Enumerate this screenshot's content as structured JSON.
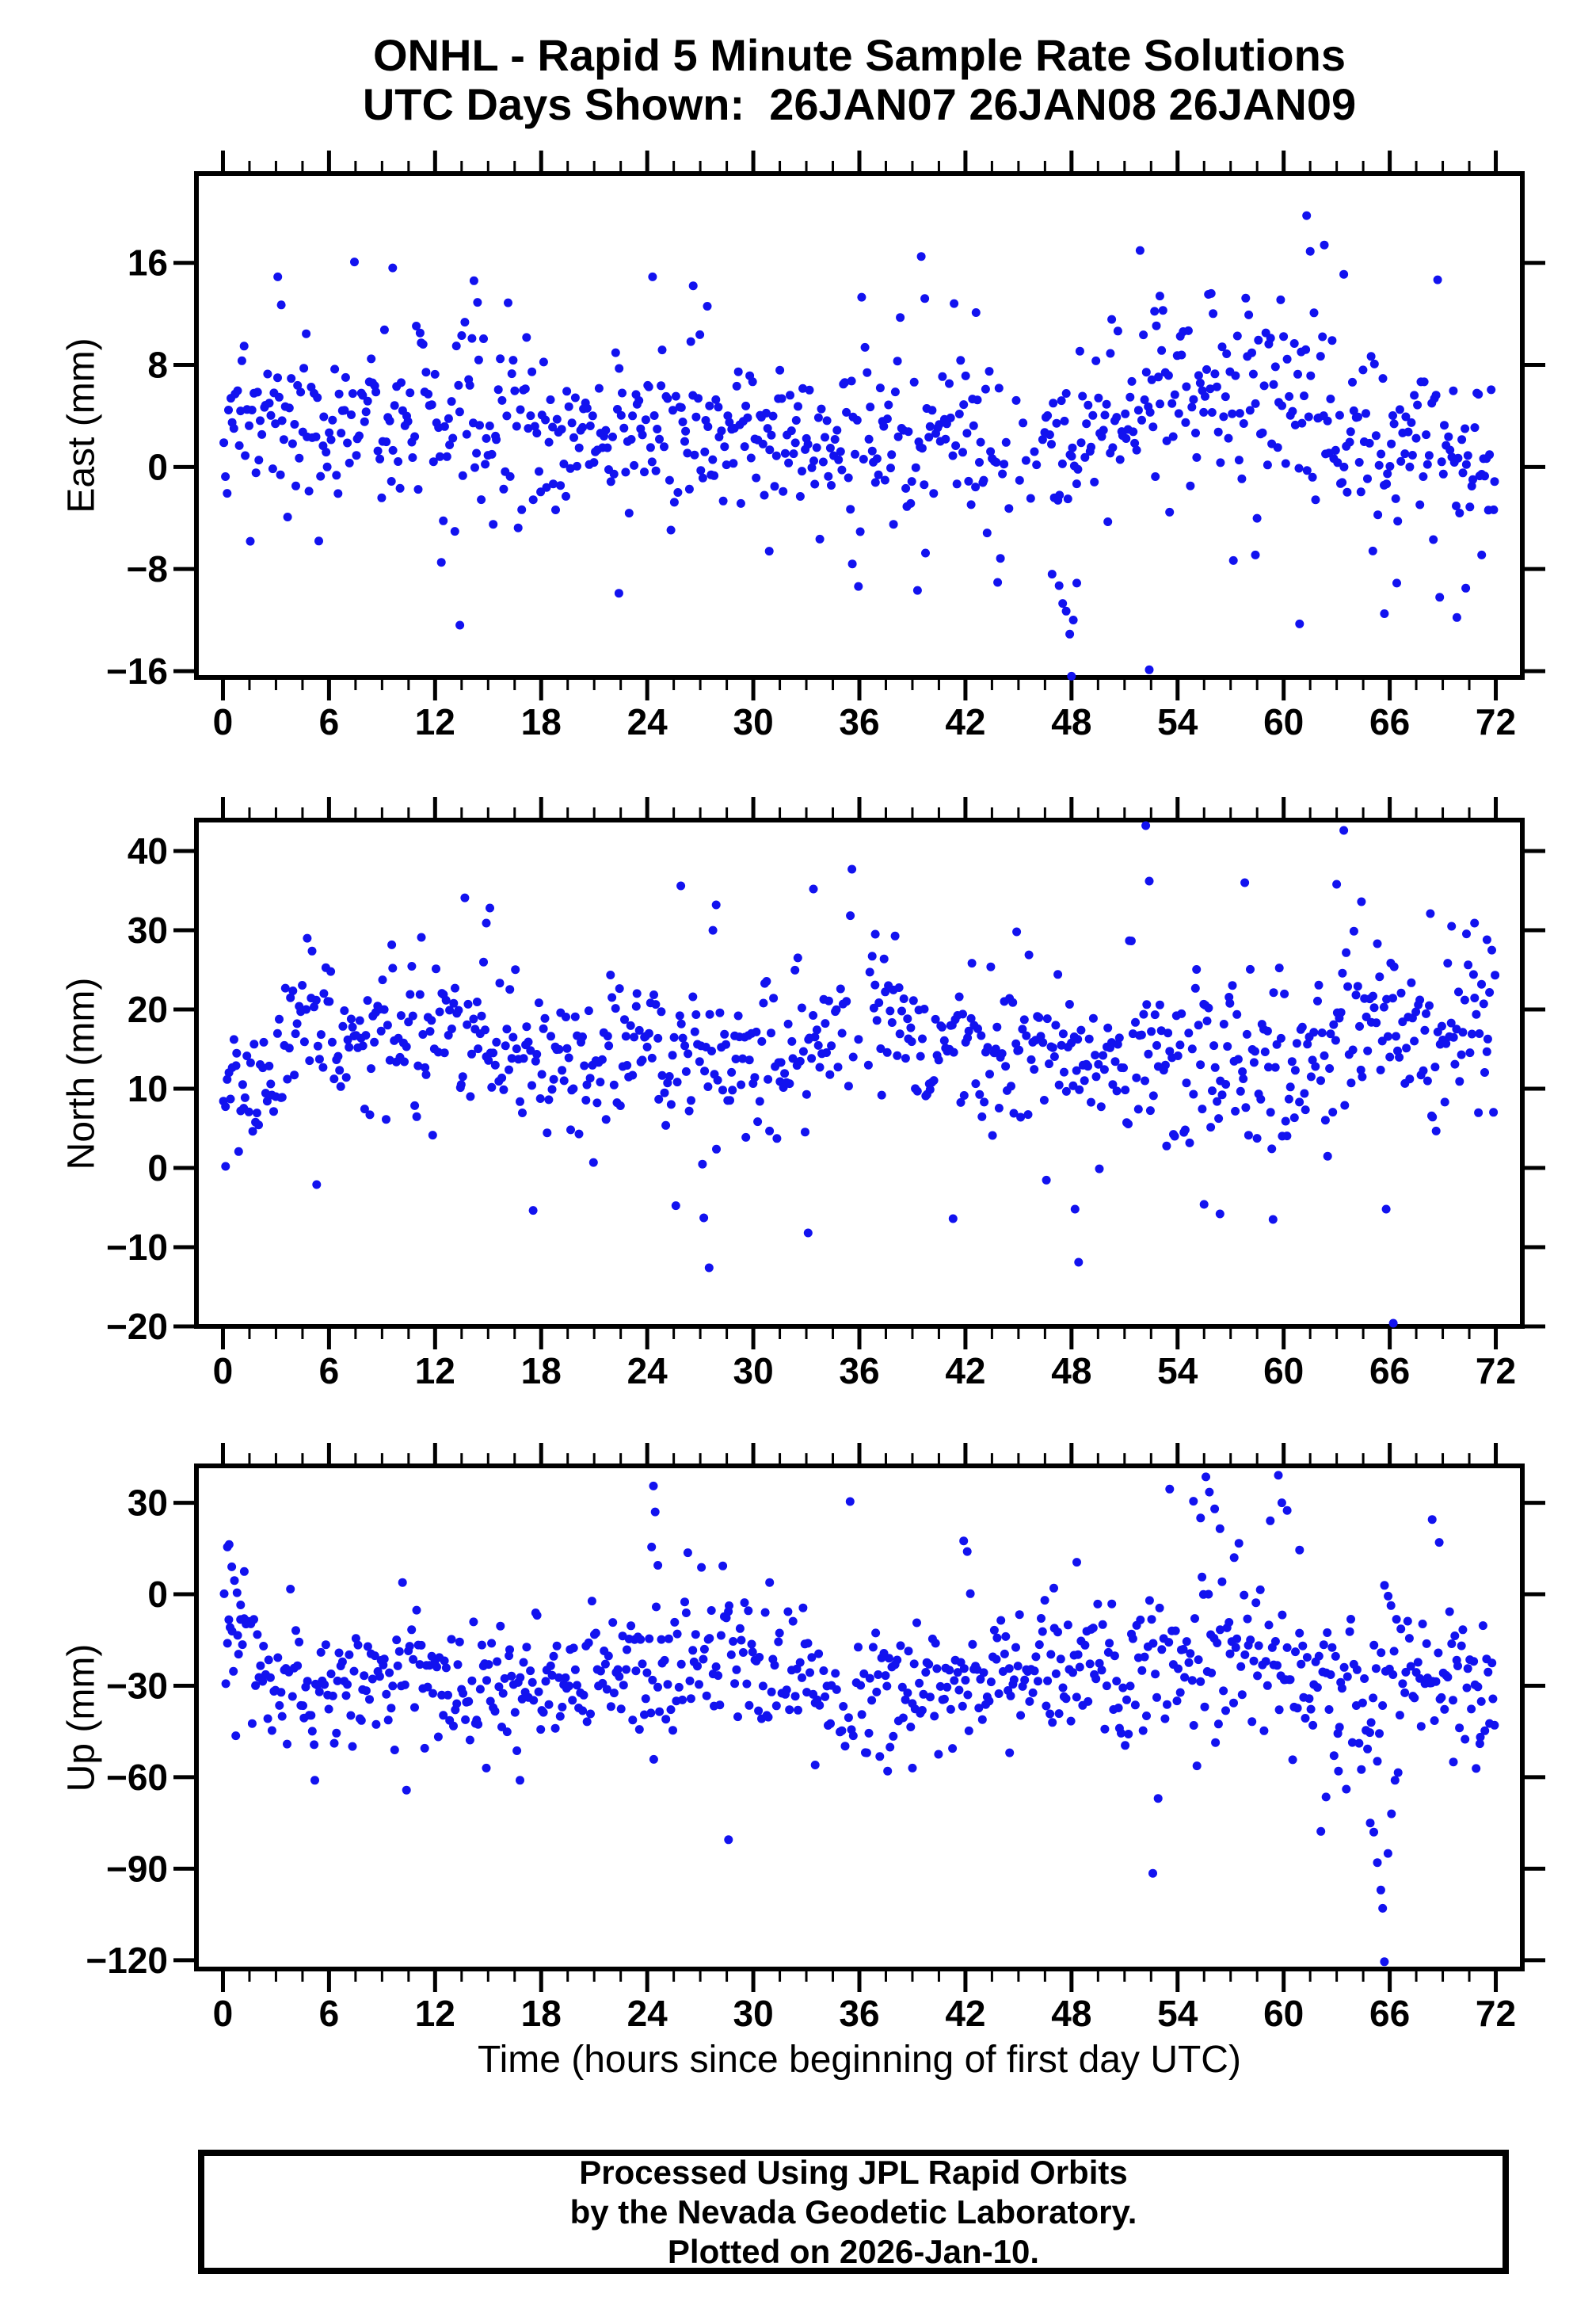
{
  "title": {
    "line1": "ONHL - Rapid 5 Minute Sample Rate Solutions",
    "line2": "UTC Days Shown:  26JAN07 26JAN08 26JAN09"
  },
  "footer": {
    "lines": [
      "Processed Using JPL Rapid Orbits",
      "by the Nevada Geodetic Laboratory.",
      "Plotted on 2026-Jan-10."
    ]
  },
  "chart_data": {
    "type": "scatter",
    "point_color": "#1212ef",
    "axis_color": "#000000",
    "point_radius": 5.5,
    "xlabel": "Time (hours since beginning of first day UTC)",
    "x_axis": {
      "min": -1.5,
      "max": 73.5,
      "major_ticks": [
        0,
        6,
        12,
        18,
        24,
        30,
        36,
        42,
        48,
        54,
        60,
        66,
        72
      ],
      "minor_step": 1.5
    },
    "panels": [
      {
        "id": "east",
        "ylabel": "East (mm)",
        "ylim": [
          -16.5,
          23
        ],
        "yticks": [
          -16,
          -8,
          0,
          8,
          16
        ],
        "seed": 20107,
        "n": 760,
        "segments": [
          [
            0,
            6,
            3.4,
            3.0
          ],
          [
            6,
            12,
            4.2,
            3.2
          ],
          [
            12,
            18,
            3.0,
            3.4
          ],
          [
            18,
            24,
            2.2,
            3.0
          ],
          [
            24,
            30,
            3.6,
            3.2
          ],
          [
            30,
            36,
            2.2,
            3.0
          ],
          [
            36,
            42,
            2.8,
            3.4
          ],
          [
            42,
            48,
            1.2,
            3.6
          ],
          [
            48,
            51,
            2.6,
            3.4
          ],
          [
            51,
            57,
            5.2,
            3.4
          ],
          [
            57,
            63,
            5.0,
            3.8
          ],
          [
            63,
            69,
            2.2,
            3.6
          ],
          [
            69,
            73,
            2.6,
            3.4
          ]
        ],
        "sparse": [
          [
            44,
            46.5,
            0.5
          ]
        ],
        "outliers": [
          [
            3.1,
            14.9
          ],
          [
            3.3,
            12.7
          ],
          [
            9.6,
            15.6
          ],
          [
            13.4,
            -12.4
          ],
          [
            14.2,
            14.6
          ],
          [
            14.4,
            12.9
          ],
          [
            22.4,
            -9.9
          ],
          [
            24.3,
            14.9
          ],
          [
            26.6,
            14.2
          ],
          [
            27.4,
            12.6
          ],
          [
            30.9,
            -6.6
          ],
          [
            35.6,
            -7.6
          ],
          [
            39.5,
            16.5
          ],
          [
            39.7,
            13.2
          ],
          [
            42.6,
            12.1
          ],
          [
            46.9,
            -8.4
          ],
          [
            47.3,
            -9.3
          ],
          [
            47.5,
            -10.7
          ],
          [
            47.7,
            -11.3
          ],
          [
            47.9,
            -13.1
          ],
          [
            48.0,
            -16.4
          ],
          [
            48.1,
            -12.0
          ],
          [
            48.3,
            -9.1
          ],
          [
            50.2,
            8.9
          ],
          [
            52.4,
            -15.9
          ],
          [
            52.7,
            12.2
          ],
          [
            53.0,
            13.4
          ],
          [
            55.9,
            13.6
          ],
          [
            58.4,
            -6.9
          ],
          [
            60.9,
            -12.3
          ],
          [
            61.3,
            19.7
          ],
          [
            61.5,
            16.9
          ],
          [
            62.3,
            17.4
          ],
          [
            63.4,
            15.1
          ],
          [
            65.7,
            -11.5
          ],
          [
            66.4,
            -9.1
          ],
          [
            69.8,
            -11.8
          ],
          [
            70.3,
            -9.5
          ],
          [
            71.2,
            -6.9
          ]
        ]
      },
      {
        "id": "north",
        "ylabel": "North (mm)",
        "ylim": [
          -20,
          43.9
        ],
        "yticks": [
          -20,
          -10,
          0,
          10,
          20,
          30,
          40
        ],
        "seed": 20108,
        "n": 760,
        "segments": [
          [
            0,
            3,
            11,
            4.5
          ],
          [
            3,
            9,
            17,
            4.8
          ],
          [
            9,
            15,
            17.5,
            5.0
          ],
          [
            15,
            21,
            14.5,
            5.0
          ],
          [
            21,
            27,
            16,
            5.2
          ],
          [
            27,
            33,
            15,
            5.5
          ],
          [
            33,
            39,
            16.5,
            5.0
          ],
          [
            39,
            45,
            14.5,
            4.8
          ],
          [
            45,
            51,
            15.5,
            5.2
          ],
          [
            51,
            57,
            14.5,
            6.0
          ],
          [
            57,
            63,
            13.5,
            6.0
          ],
          [
            63,
            69,
            16.5,
            5.5
          ],
          [
            69,
            73,
            17,
            5.0
          ]
        ],
        "sparse": [
          [
            34.5,
            36.5,
            0.6
          ]
        ],
        "outliers": [
          [
            0.15,
            0.2
          ],
          [
            5.3,
            -2.1
          ],
          [
            14.9,
            30.9
          ],
          [
            15.1,
            32.8
          ],
          [
            25.9,
            35.6
          ],
          [
            27.2,
            -6.3
          ],
          [
            27.5,
            -12.6
          ],
          [
            27.9,
            33.2
          ],
          [
            33.1,
            -8.2
          ],
          [
            33.4,
            35.2
          ],
          [
            36.9,
            29.5
          ],
          [
            41.3,
            -6.4
          ],
          [
            44.9,
            29.8
          ],
          [
            48.2,
            -5.2
          ],
          [
            48.4,
            -11.9
          ],
          [
            52.2,
            43.2
          ],
          [
            52.4,
            36.2
          ],
          [
            55.5,
            -4.6
          ],
          [
            56.4,
            -5.8
          ],
          [
            57.8,
            36.0
          ],
          [
            59.4,
            -6.5
          ],
          [
            63.0,
            35.8
          ],
          [
            63.4,
            42.6
          ],
          [
            64.4,
            33.6
          ],
          [
            65.8,
            -5.2
          ],
          [
            66.2,
            -19.6
          ],
          [
            68.3,
            32.1
          ],
          [
            69.5,
            30.5
          ],
          [
            70.8,
            30.9
          ],
          [
            71.5,
            28.8
          ]
        ]
      },
      {
        "id": "up",
        "ylabel": "Up (mm)",
        "ylim": [
          -122.9,
          42.1
        ],
        "yticks": [
          -120,
          -90,
          -60,
          -30,
          0,
          30
        ],
        "seed": 20109,
        "n": 760,
        "segments": [
          [
            0,
            2,
            -18,
            12
          ],
          [
            2,
            6,
            -31,
            9
          ],
          [
            6,
            12,
            -27,
            10
          ],
          [
            12,
            18,
            -30,
            10
          ],
          [
            18,
            24,
            -26,
            10
          ],
          [
            24,
            30,
            -24,
            11
          ],
          [
            30,
            36,
            -27,
            10
          ],
          [
            36,
            42,
            -32,
            11
          ],
          [
            42,
            48,
            -27,
            11
          ],
          [
            48,
            54,
            -23,
            12
          ],
          [
            54,
            60,
            -19,
            14
          ],
          [
            60,
            66,
            -30,
            13
          ],
          [
            66,
            73,
            -28,
            11
          ]
        ],
        "sparse": [
          [
            33.8,
            35.8,
            0.6
          ]
        ],
        "outliers": [
          [
            0.25,
            15.5
          ],
          [
            0.35,
            16.3
          ],
          [
            0.5,
            9.0
          ],
          [
            0.65,
            4.5
          ],
          [
            0.8,
            0.5
          ],
          [
            1.0,
            -3.5
          ],
          [
            1.2,
            -8.0
          ],
          [
            5.2,
            -61
          ],
          [
            14.9,
            -57
          ],
          [
            16.8,
            -61
          ],
          [
            24.25,
            15.5
          ],
          [
            24.35,
            35.5
          ],
          [
            24.45,
            27.0
          ],
          [
            24.6,
            9.5
          ],
          [
            28.6,
            -80.5
          ],
          [
            33.5,
            -56
          ],
          [
            37.6,
            -58
          ],
          [
            39.0,
            -57
          ],
          [
            41.9,
            17.5
          ],
          [
            42.1,
            14.0
          ],
          [
            44.5,
            -52
          ],
          [
            47.0,
            2.0
          ],
          [
            48.3,
            10.5
          ],
          [
            52.6,
            -91.5
          ],
          [
            54.9,
            30.5
          ],
          [
            55.3,
            25.0
          ],
          [
            55.6,
            38.5
          ],
          [
            55.8,
            33.5
          ],
          [
            56.1,
            28.0
          ],
          [
            56.4,
            21.5
          ],
          [
            57.2,
            12.0
          ],
          [
            59.7,
            39.0
          ],
          [
            59.9,
            30.0
          ],
          [
            60.2,
            27.5
          ],
          [
            60.9,
            14.5
          ],
          [
            62.4,
            -66.5
          ],
          [
            63.1,
            -58
          ],
          [
            64.9,
            -75
          ],
          [
            65.1,
            -78
          ],
          [
            65.3,
            -88
          ],
          [
            65.5,
            -97
          ],
          [
            65.6,
            -103
          ],
          [
            65.7,
            -120.5
          ],
          [
            65.9,
            -85
          ],
          [
            66.1,
            -72
          ],
          [
            66.3,
            -61
          ],
          [
            68.4,
            24.5
          ],
          [
            68.8,
            17.0
          ],
          [
            69.6,
            -55
          ],
          [
            71.1,
            -49
          ]
        ]
      }
    ]
  }
}
